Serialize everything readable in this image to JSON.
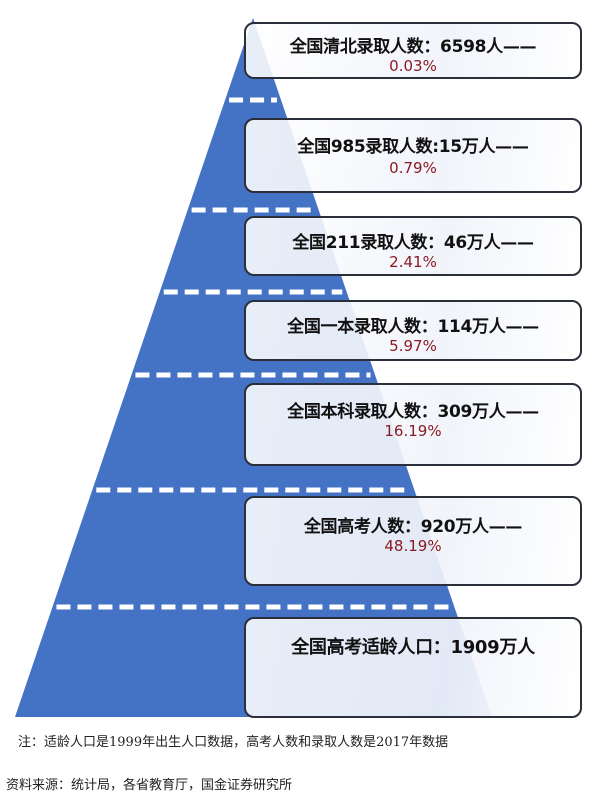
{
  "colors": {
    "pyramid": "#4472c4",
    "percent": "#8b1a22",
    "border": "#2b2f3a"
  },
  "levels": [
    {
      "label": "全国清北录取人数：6598人——",
      "percent": "0.03%"
    },
    {
      "label": "全国985录取人数:15万人——",
      "percent": "0.79%"
    },
    {
      "label": "全国211录取人数：46万人——",
      "percent": "2.41%"
    },
    {
      "label": "全国一本录取人数：114万人——",
      "percent": "5.97%"
    },
    {
      "label": "全国本科录取人数：309万人——",
      "percent": "16.19%"
    },
    {
      "label": "全国高考人数：920万人——",
      "percent": "48.19%"
    },
    {
      "label": "全国高考适龄人口：1909万人",
      "percent": ""
    }
  ],
  "note": "注：适龄人口是1999年出生人口数据，高考人数和录取人数是2017年数据",
  "source": "资料来源：统计局，各省教育厅，国金证券研究所"
}
